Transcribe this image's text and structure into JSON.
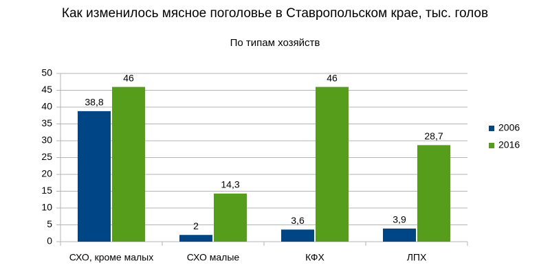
{
  "chart_data": {
    "type": "bar",
    "title": "Как изменилось мясное поголовье в Ставропольском крае, тыс. голов",
    "subtitle": "По типам хозяйств",
    "categories": [
      "СХО, кроме малых",
      "СХО малые",
      "КФХ",
      "ЛПХ"
    ],
    "series": [
      {
        "name": "2006",
        "color": "#004586",
        "values": [
          38.8,
          2,
          3.6,
          3.9
        ],
        "value_labels": [
          "38,8",
          "2",
          "3,6",
          "3,9"
        ]
      },
      {
        "name": "2016",
        "color": "#579d1c",
        "values": [
          46,
          14.3,
          46,
          28.7
        ],
        "value_labels": [
          "46",
          "14,3",
          "46",
          "28,7"
        ]
      }
    ],
    "ylim": [
      0,
      50
    ],
    "yticks": [
      0,
      5,
      10,
      15,
      20,
      25,
      30,
      35,
      40,
      45,
      50
    ],
    "grid": true,
    "legend": "right"
  }
}
